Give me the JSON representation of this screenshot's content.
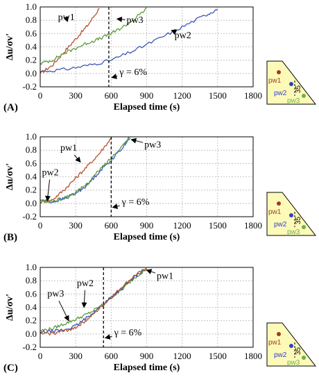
{
  "chart_data": [
    {
      "type": "line",
      "panel_label": "(A)",
      "xlabel": "Elapsed time (s)",
      "ylabel": "Δu/σv'",
      "xlim": [
        0,
        1800
      ],
      "ylim": [
        -0.2,
        1.0
      ],
      "xticks": [
        0,
        300,
        600,
        900,
        1200,
        1500,
        1800
      ],
      "yticks": [
        -0.2,
        0.0,
        0.2,
        0.4,
        0.6,
        0.8,
        1.0
      ],
      "grid": true,
      "marker_x": 580,
      "marker_label": "γ = 6%",
      "series": [
        {
          "name": "pw1",
          "color": "#b5522a",
          "x": [
            0,
            100,
            200,
            300,
            400,
            500
          ],
          "y": [
            0.0,
            0.12,
            0.32,
            0.52,
            0.72,
            0.98
          ]
        },
        {
          "name": "pw3",
          "color": "#5e9a3c",
          "x": [
            0,
            100,
            200,
            300,
            400,
            500,
            600,
            700,
            800,
            900
          ],
          "y": [
            0.15,
            0.2,
            0.3,
            0.38,
            0.46,
            0.52,
            0.6,
            0.7,
            0.82,
            0.98
          ]
        },
        {
          "name": "pw2",
          "color": "#3b55b5",
          "x": [
            0,
            200,
            400,
            600,
            800,
            1000,
            1200,
            1400,
            1500
          ],
          "y": [
            0.03,
            0.06,
            0.12,
            0.2,
            0.35,
            0.52,
            0.7,
            0.88,
            0.97
          ]
        }
      ],
      "annotations": [
        {
          "text": "pw1",
          "x": 150,
          "y": 0.8,
          "arrow_to": [
            230,
            0.78
          ]
        },
        {
          "text": "pw3",
          "x": 730,
          "y": 0.76,
          "arrow_to": [
            650,
            0.82
          ]
        },
        {
          "text": "pw2",
          "x": 1135,
          "y": 0.53,
          "arrow_to": [
            1110,
            0.65
          ]
        },
        {
          "text": "γ = 6%",
          "x": 670,
          "y": -0.02,
          "arrow_to": [
            605,
            -0.06
          ]
        }
      ]
    },
    {
      "type": "line",
      "panel_label": "(B)",
      "xlabel": "Elapsed time (s)",
      "ylabel": "Δu/σv'",
      "xlim": [
        0,
        1800
      ],
      "ylim": [
        -0.2,
        1.0
      ],
      "xticks": [
        0,
        300,
        600,
        900,
        1200,
        1500,
        1800
      ],
      "yticks": [
        -0.2,
        0.0,
        0.2,
        0.4,
        0.6,
        0.8,
        1.0
      ],
      "grid": true,
      "marker_x": 600,
      "marker_label": "γ = 6%",
      "series": [
        {
          "name": "pw1",
          "color": "#b5522a",
          "x": [
            0,
            100,
            200,
            300,
            400,
            500,
            600
          ],
          "y": [
            0.02,
            0.05,
            0.2,
            0.38,
            0.56,
            0.75,
            0.98
          ]
        },
        {
          "name": "pw2",
          "color": "#3b55b5",
          "x": [
            0,
            100,
            200,
            300,
            400,
            500,
            600,
            700,
            750
          ],
          "y": [
            0.05,
            0.02,
            0.07,
            0.15,
            0.28,
            0.48,
            0.65,
            0.85,
            0.98
          ]
        },
        {
          "name": "pw3",
          "color": "#5e9a3c",
          "x": [
            0,
            100,
            200,
            300,
            400,
            500,
            600,
            700,
            760
          ],
          "y": [
            0.04,
            0.03,
            0.08,
            0.16,
            0.3,
            0.5,
            0.68,
            0.88,
            0.99
          ]
        }
      ],
      "annotations": [
        {
          "text": "pw1",
          "x": 170,
          "y": 0.79,
          "arrow_to": [
            340,
            0.62
          ]
        },
        {
          "text": "pw2",
          "x": 15,
          "y": 0.42,
          "arrow_to": [
            60,
            0.04
          ]
        },
        {
          "text": "pw3",
          "x": 880,
          "y": 0.84,
          "arrow_to": [
            770,
            0.96
          ]
        },
        {
          "text": "γ = 6%",
          "x": 690,
          "y": -0.02,
          "arrow_to": [
            612,
            -0.06
          ]
        }
      ]
    },
    {
      "type": "line",
      "panel_label": "(C)",
      "xlabel": "Elapsed time (s)",
      "ylabel": "Δu/σv'",
      "xlim": [
        0,
        1800
      ],
      "ylim": [
        -0.2,
        1.0
      ],
      "xticks": [
        0,
        300,
        600,
        900,
        1200,
        1500,
        1800
      ],
      "yticks": [
        -0.2,
        0.0,
        0.2,
        0.4,
        0.6,
        0.8,
        1.0
      ],
      "grid": true,
      "marker_x": 535,
      "marker_label": "γ = 6%",
      "series": [
        {
          "name": "pw3",
          "color": "#5e9a3c",
          "x": [
            0,
            100,
            200,
            300,
            400,
            500,
            600,
            700,
            800,
            900
          ],
          "y": [
            0.05,
            0.08,
            0.15,
            0.22,
            0.3,
            0.4,
            0.55,
            0.68,
            0.85,
            0.98
          ]
        },
        {
          "name": "pw2",
          "color": "#3b55b5",
          "x": [
            0,
            100,
            200,
            300,
            400,
            500,
            600,
            700,
            800,
            880
          ],
          "y": [
            0.02,
            0.04,
            0.06,
            0.12,
            0.25,
            0.4,
            0.55,
            0.7,
            0.86,
            0.97
          ]
        },
        {
          "name": "pw1",
          "color": "#b5522a",
          "x": [
            0,
            100,
            200,
            300,
            400,
            500,
            600,
            700,
            800,
            900
          ],
          "y": [
            0.0,
            0.01,
            0.04,
            0.1,
            0.22,
            0.38,
            0.55,
            0.72,
            0.88,
            0.98
          ]
        }
      ],
      "annotations": [
        {
          "text": "pw3",
          "x": 60,
          "y": 0.56,
          "arrow_to": [
            240,
            0.2
          ]
        },
        {
          "text": "pw2",
          "x": 310,
          "y": 0.72,
          "arrow_to": [
            370,
            0.4
          ]
        },
        {
          "text": "pw1",
          "x": 985,
          "y": 0.83,
          "arrow_to": [
            900,
            0.96
          ]
        },
        {
          "text": "γ = 6%",
          "x": 625,
          "y": -0.02,
          "arrow_to": [
            550,
            -0.06
          ]
        }
      ]
    }
  ],
  "inset": {
    "labels": [
      "pw1",
      "pw2",
      "pw3"
    ],
    "dimension": "35",
    "colors": {
      "fill": "#fdfab8",
      "pw1": "#9c3d1e",
      "pw2": "#2f3fc8",
      "pw3": "#6ab04c"
    }
  }
}
